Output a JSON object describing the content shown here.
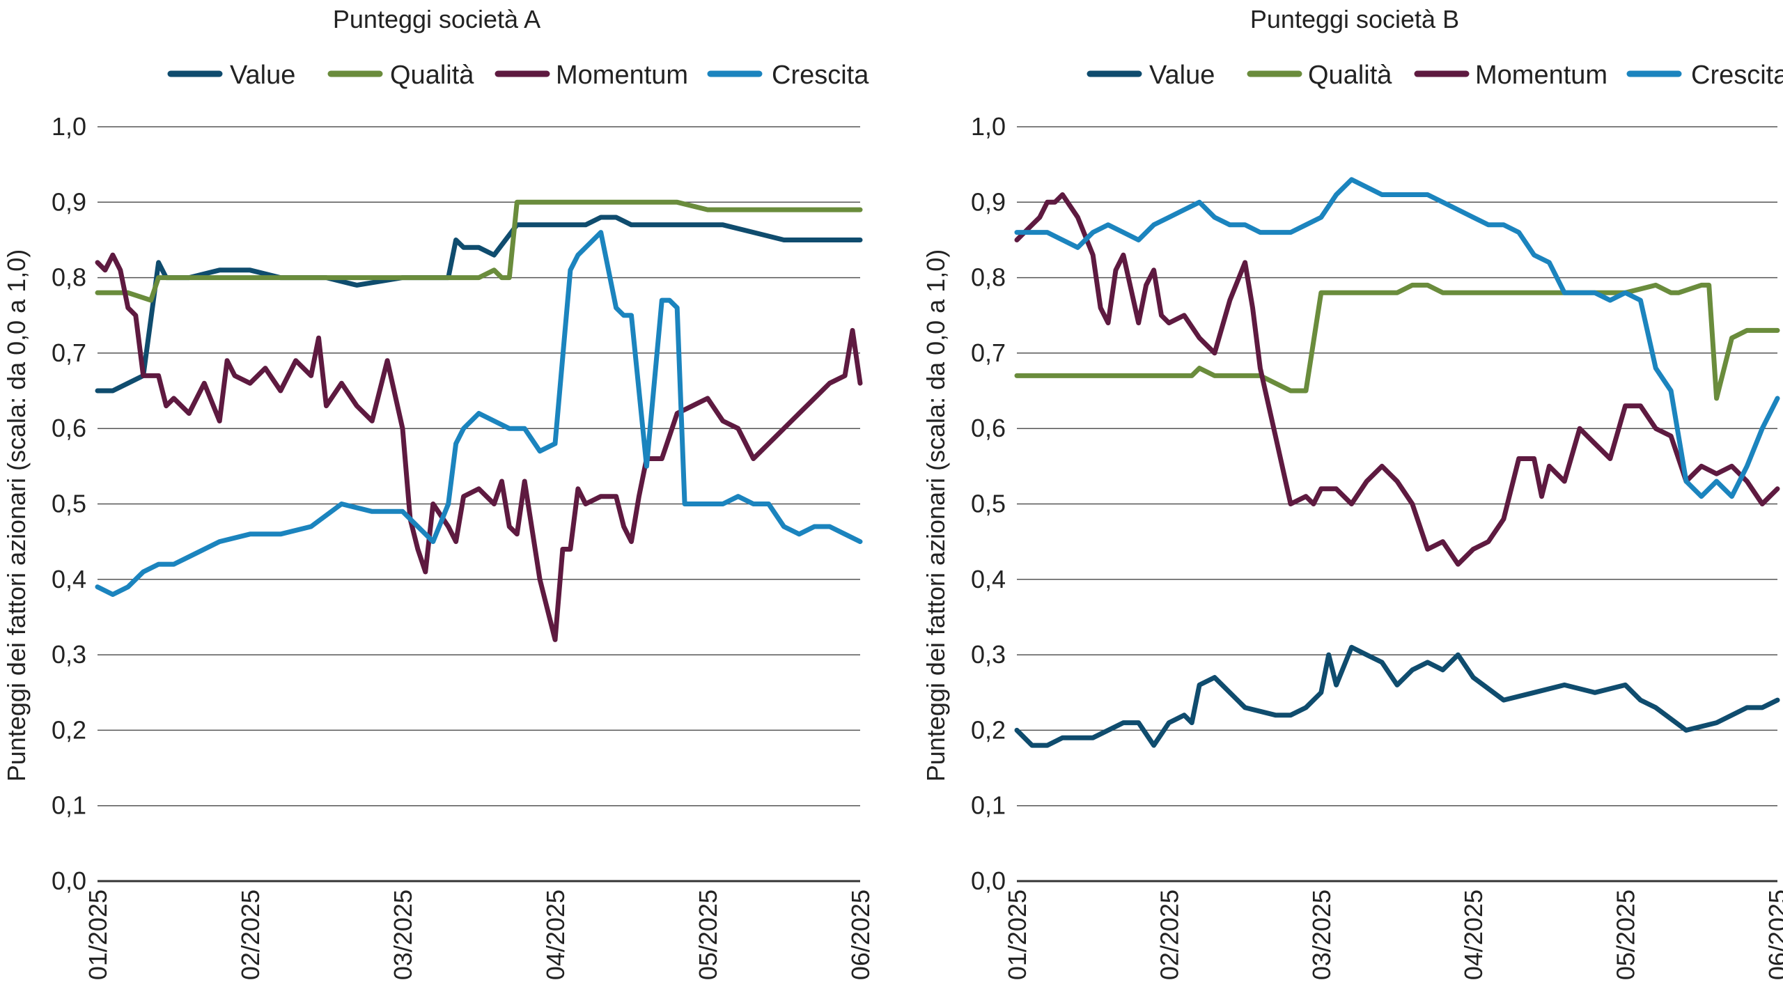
{
  "ylabel": "Punteggi dei fattori azionari (scala: da 0,0 a 1,0)",
  "y_ticks": [
    "0,0",
    "0,1",
    "0,2",
    "0,3",
    "0,4",
    "0,5",
    "0,6",
    "0,7",
    "0,8",
    "0,9",
    "1,0"
  ],
  "x_ticks": [
    "01/2025",
    "02/2025",
    "03/2025",
    "04/2025",
    "05/2025",
    "06/2025"
  ],
  "colors": {
    "Value": "#0f4c6e",
    "Qualità": "#6a8c3c",
    "Momentum": "#5e1a40",
    "Crescita": "#1b84be"
  },
  "chart_data": [
    {
      "type": "line",
      "title": "Punteggi società A",
      "xlabel": "",
      "ylabel": "Punteggi dei fattori azionari (scala: da 0,0 a 1,0)",
      "ylim": [
        0,
        1
      ],
      "xlim": [
        0,
        5
      ],
      "series": [
        {
          "name": "Value",
          "x": [
            0,
            0.1,
            0.2,
            0.3,
            0.4,
            0.45,
            0.5,
            0.6,
            0.8,
            1.0,
            1.2,
            1.5,
            1.7,
            2.0,
            2.3,
            2.35,
            2.4,
            2.5,
            2.6,
            2.75,
            2.9,
            3.0,
            3.2,
            3.3,
            3.4,
            3.5,
            3.7,
            3.9,
            4.1,
            4.3,
            4.5,
            4.7,
            5.0
          ],
          "values": [
            0.65,
            0.65,
            0.66,
            0.67,
            0.82,
            0.8,
            0.8,
            0.8,
            0.81,
            0.81,
            0.8,
            0.8,
            0.79,
            0.8,
            0.8,
            0.85,
            0.84,
            0.84,
            0.83,
            0.87,
            0.87,
            0.87,
            0.87,
            0.88,
            0.88,
            0.87,
            0.87,
            0.87,
            0.87,
            0.86,
            0.85,
            0.85,
            0.85
          ]
        },
        {
          "name": "Qualità",
          "x": [
            0,
            0.2,
            0.35,
            0.4,
            0.5,
            1.0,
            1.5,
            2.0,
            2.2,
            2.5,
            2.6,
            2.65,
            2.7,
            2.75,
            3.0,
            3.3,
            3.5,
            3.6,
            3.8,
            4.0,
            4.2,
            4.5,
            5.0
          ],
          "values": [
            0.78,
            0.78,
            0.77,
            0.8,
            0.8,
            0.8,
            0.8,
            0.8,
            0.8,
            0.8,
            0.81,
            0.8,
            0.8,
            0.9,
            0.9,
            0.9,
            0.9,
            0.9,
            0.9,
            0.89,
            0.89,
            0.89,
            0.89
          ]
        },
        {
          "name": "Momentum",
          "x": [
            0,
            0.05,
            0.1,
            0.15,
            0.2,
            0.25,
            0.3,
            0.35,
            0.4,
            0.45,
            0.5,
            0.6,
            0.7,
            0.8,
            0.85,
            0.9,
            1.0,
            1.1,
            1.2,
            1.3,
            1.4,
            1.45,
            1.5,
            1.6,
            1.7,
            1.8,
            1.9,
            2.0,
            2.05,
            2.1,
            2.15,
            2.2,
            2.3,
            2.35,
            2.4,
            2.5,
            2.6,
            2.65,
            2.7,
            2.75,
            2.8,
            2.9,
            3.0,
            3.05,
            3.1,
            3.15,
            3.2,
            3.3,
            3.4,
            3.45,
            3.5,
            3.55,
            3.6,
            3.65,
            3.7,
            3.8,
            3.9,
            4.0,
            4.1,
            4.2,
            4.3,
            4.4,
            4.45,
            4.5,
            4.6,
            4.7,
            4.8,
            4.9,
            4.95,
            5.0
          ],
          "values": [
            0.82,
            0.81,
            0.83,
            0.81,
            0.76,
            0.75,
            0.67,
            0.67,
            0.67,
            0.63,
            0.64,
            0.62,
            0.66,
            0.61,
            0.69,
            0.67,
            0.66,
            0.68,
            0.65,
            0.69,
            0.67,
            0.72,
            0.63,
            0.66,
            0.63,
            0.61,
            0.69,
            0.6,
            0.48,
            0.44,
            0.41,
            0.5,
            0.47,
            0.45,
            0.51,
            0.52,
            0.5,
            0.53,
            0.47,
            0.46,
            0.53,
            0.4,
            0.32,
            0.44,
            0.44,
            0.52,
            0.5,
            0.51,
            0.51,
            0.47,
            0.45,
            0.51,
            0.56,
            0.56,
            0.56,
            0.62,
            0.63,
            0.64,
            0.61,
            0.6,
            0.56,
            0.58,
            0.59,
            0.6,
            0.62,
            0.64,
            0.66,
            0.67,
            0.73,
            0.66
          ]
        },
        {
          "name": "Crescita",
          "x": [
            0,
            0.1,
            0.2,
            0.3,
            0.4,
            0.5,
            0.6,
            0.8,
            1.0,
            1.2,
            1.4,
            1.6,
            1.8,
            2.0,
            2.1,
            2.2,
            2.3,
            2.35,
            2.4,
            2.5,
            2.6,
            2.7,
            2.8,
            2.9,
            3.0,
            3.1,
            3.15,
            3.2,
            3.3,
            3.4,
            3.45,
            3.5,
            3.6,
            3.7,
            3.75,
            3.8,
            3.85,
            3.9,
            4.0,
            4.1,
            4.2,
            4.3,
            4.4,
            4.5,
            4.6,
            4.7,
            4.8,
            4.9,
            5.0
          ],
          "values": [
            0.39,
            0.38,
            0.39,
            0.41,
            0.42,
            0.42,
            0.43,
            0.45,
            0.46,
            0.46,
            0.47,
            0.5,
            0.49,
            0.49,
            0.47,
            0.45,
            0.5,
            0.58,
            0.6,
            0.62,
            0.61,
            0.6,
            0.6,
            0.57,
            0.58,
            0.81,
            0.83,
            0.84,
            0.86,
            0.76,
            0.75,
            0.75,
            0.55,
            0.77,
            0.77,
            0.76,
            0.5,
            0.5,
            0.5,
            0.5,
            0.51,
            0.5,
            0.5,
            0.47,
            0.46,
            0.47,
            0.47,
            0.46,
            0.45
          ]
        }
      ]
    },
    {
      "type": "line",
      "title": "Punteggi società B",
      "xlabel": "",
      "ylabel": "Punteggi dei fattori azionari (scala: da 0,0 a 1,0)",
      "ylim": [
        0,
        1
      ],
      "xlim": [
        0,
        5
      ],
      "series": [
        {
          "name": "Value",
          "x": [
            0,
            0.1,
            0.2,
            0.3,
            0.5,
            0.7,
            0.8,
            0.9,
            1.0,
            1.1,
            1.15,
            1.2,
            1.3,
            1.5,
            1.7,
            1.8,
            1.9,
            2.0,
            2.05,
            2.1,
            2.2,
            2.3,
            2.4,
            2.5,
            2.6,
            2.7,
            2.8,
            2.9,
            3.0,
            3.2,
            3.4,
            3.6,
            3.8,
            4.0,
            4.1,
            4.2,
            4.4,
            4.6,
            4.8,
            4.9,
            5.0
          ],
          "values": [
            0.2,
            0.18,
            0.18,
            0.19,
            0.19,
            0.21,
            0.21,
            0.18,
            0.21,
            0.22,
            0.21,
            0.26,
            0.27,
            0.23,
            0.22,
            0.22,
            0.23,
            0.25,
            0.3,
            0.26,
            0.31,
            0.3,
            0.29,
            0.26,
            0.28,
            0.29,
            0.28,
            0.3,
            0.27,
            0.24,
            0.25,
            0.26,
            0.25,
            0.26,
            0.24,
            0.23,
            0.2,
            0.21,
            0.23,
            0.23,
            0.24
          ]
        },
        {
          "name": "Qualità",
          "x": [
            0,
            0.5,
            1.0,
            1.15,
            1.2,
            1.3,
            1.4,
            1.6,
            1.8,
            1.85,
            1.9,
            2.0,
            2.2,
            2.5,
            2.6,
            2.7,
            2.8,
            3.0,
            3.5,
            4.0,
            4.2,
            4.3,
            4.35,
            4.5,
            4.55,
            4.6,
            4.7,
            4.8,
            5.0
          ],
          "values": [
            0.67,
            0.67,
            0.67,
            0.67,
            0.68,
            0.67,
            0.67,
            0.67,
            0.65,
            0.65,
            0.65,
            0.78,
            0.78,
            0.78,
            0.79,
            0.79,
            0.78,
            0.78,
            0.78,
            0.78,
            0.79,
            0.78,
            0.78,
            0.79,
            0.79,
            0.64,
            0.72,
            0.73,
            0.73
          ]
        },
        {
          "name": "Momentum",
          "x": [
            0,
            0.1,
            0.15,
            0.2,
            0.25,
            0.3,
            0.4,
            0.5,
            0.55,
            0.6,
            0.65,
            0.7,
            0.8,
            0.85,
            0.9,
            0.95,
            1.0,
            1.1,
            1.2,
            1.3,
            1.4,
            1.5,
            1.55,
            1.6,
            1.7,
            1.8,
            1.9,
            1.95,
            2.0,
            2.1,
            2.2,
            2.3,
            2.4,
            2.5,
            2.6,
            2.7,
            2.8,
            2.9,
            3.0,
            3.1,
            3.2,
            3.3,
            3.4,
            3.45,
            3.5,
            3.6,
            3.7,
            3.8,
            3.9,
            4.0,
            4.1,
            4.2,
            4.3,
            4.4,
            4.5,
            4.6,
            4.7,
            4.8,
            4.9,
            5.0
          ],
          "values": [
            0.85,
            0.87,
            0.88,
            0.9,
            0.9,
            0.91,
            0.88,
            0.83,
            0.76,
            0.74,
            0.81,
            0.83,
            0.74,
            0.79,
            0.81,
            0.75,
            0.74,
            0.75,
            0.72,
            0.7,
            0.77,
            0.82,
            0.76,
            0.68,
            0.59,
            0.5,
            0.51,
            0.5,
            0.52,
            0.52,
            0.5,
            0.53,
            0.55,
            0.53,
            0.5,
            0.44,
            0.45,
            0.42,
            0.44,
            0.45,
            0.48,
            0.56,
            0.56,
            0.51,
            0.55,
            0.53,
            0.6,
            0.58,
            0.56,
            0.63,
            0.63,
            0.6,
            0.59,
            0.53,
            0.55,
            0.54,
            0.55,
            0.53,
            0.5,
            0.52
          ]
        },
        {
          "name": "Crescita",
          "x": [
            0,
            0.1,
            0.2,
            0.3,
            0.4,
            0.5,
            0.6,
            0.7,
            0.8,
            0.9,
            1.0,
            1.1,
            1.2,
            1.3,
            1.4,
            1.5,
            1.6,
            1.7,
            1.8,
            1.9,
            2.0,
            2.1,
            2.2,
            2.3,
            2.4,
            2.5,
            2.6,
            2.7,
            2.8,
            2.9,
            3.0,
            3.1,
            3.2,
            3.3,
            3.4,
            3.5,
            3.6,
            3.7,
            3.8,
            3.9,
            4.0,
            4.1,
            4.2,
            4.3,
            4.4,
            4.5,
            4.6,
            4.7,
            4.8,
            4.9,
            5.0
          ],
          "values": [
            0.86,
            0.86,
            0.86,
            0.85,
            0.84,
            0.86,
            0.87,
            0.86,
            0.85,
            0.87,
            0.88,
            0.89,
            0.9,
            0.88,
            0.87,
            0.87,
            0.86,
            0.86,
            0.86,
            0.87,
            0.88,
            0.91,
            0.93,
            0.92,
            0.91,
            0.91,
            0.91,
            0.91,
            0.9,
            0.89,
            0.88,
            0.87,
            0.87,
            0.86,
            0.83,
            0.82,
            0.78,
            0.78,
            0.78,
            0.77,
            0.78,
            0.77,
            0.68,
            0.65,
            0.53,
            0.51,
            0.53,
            0.51,
            0.55,
            0.6,
            0.64
          ]
        }
      ]
    }
  ]
}
